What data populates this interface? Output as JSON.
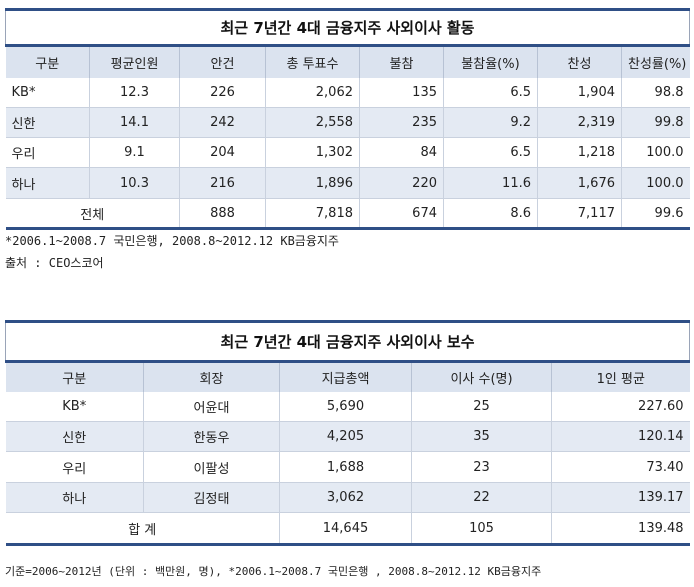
{
  "table1": {
    "title": "최근 7년간 4대 금융지주 사외이사 활동",
    "headers": [
      "구분",
      "평균인원",
      "안건",
      "총 투표수",
      "불참",
      "불참율(%)",
      "찬성",
      "찬성률(%)"
    ],
    "rows": [
      [
        "KB*",
        "12.3",
        "226",
        "2,062",
        "135",
        "6.5",
        "1,904",
        "98.8"
      ],
      [
        "신한",
        "14.1",
        "242",
        "2,558",
        "235",
        "9.2",
        "2,319",
        "99.8"
      ],
      [
        "우리",
        "9.1",
        "204",
        "1,302",
        "84",
        "6.5",
        "1,218",
        "100.0"
      ],
      [
        "하나",
        "10.3",
        "216",
        "1,896",
        "220",
        "11.6",
        "1,676",
        "100.0"
      ]
    ],
    "total": {
      "label": "전체",
      "values": [
        "888",
        "7,818",
        "674",
        "8.6",
        "7,117",
        "99.6"
      ]
    },
    "notes": [
      "*2006.1~2008.7 국민은행, 2008.8~2012.12 KB금융지주",
      "출처 : CEO스코어"
    ]
  },
  "table2": {
    "title": "최근 7년간 4대 금융지주 사외이사 보수",
    "headers": [
      "구분",
      "회장",
      "지급총액",
      "이사 수(명)",
      "1인 평균"
    ],
    "rows": [
      [
        "KB*",
        "어윤대",
        "5,690",
        "25",
        "227.60"
      ],
      [
        "신한",
        "한동우",
        "4,205",
        "35",
        "120.14"
      ],
      [
        "우리",
        "이팔성",
        "1,688",
        "23",
        "73.40"
      ],
      [
        "하나",
        "김정태",
        "3,062",
        "22",
        "139.17"
      ]
    ],
    "total": {
      "label": "합 계",
      "values": [
        "14,645",
        "105",
        "139.48"
      ]
    },
    "notes": [
      "기준=2006~2012년 (단위 : 백만원, 명), *2006.1~2008.7 국민은행 , 2008.8~2012.12 KB금융지주"
    ]
  }
}
